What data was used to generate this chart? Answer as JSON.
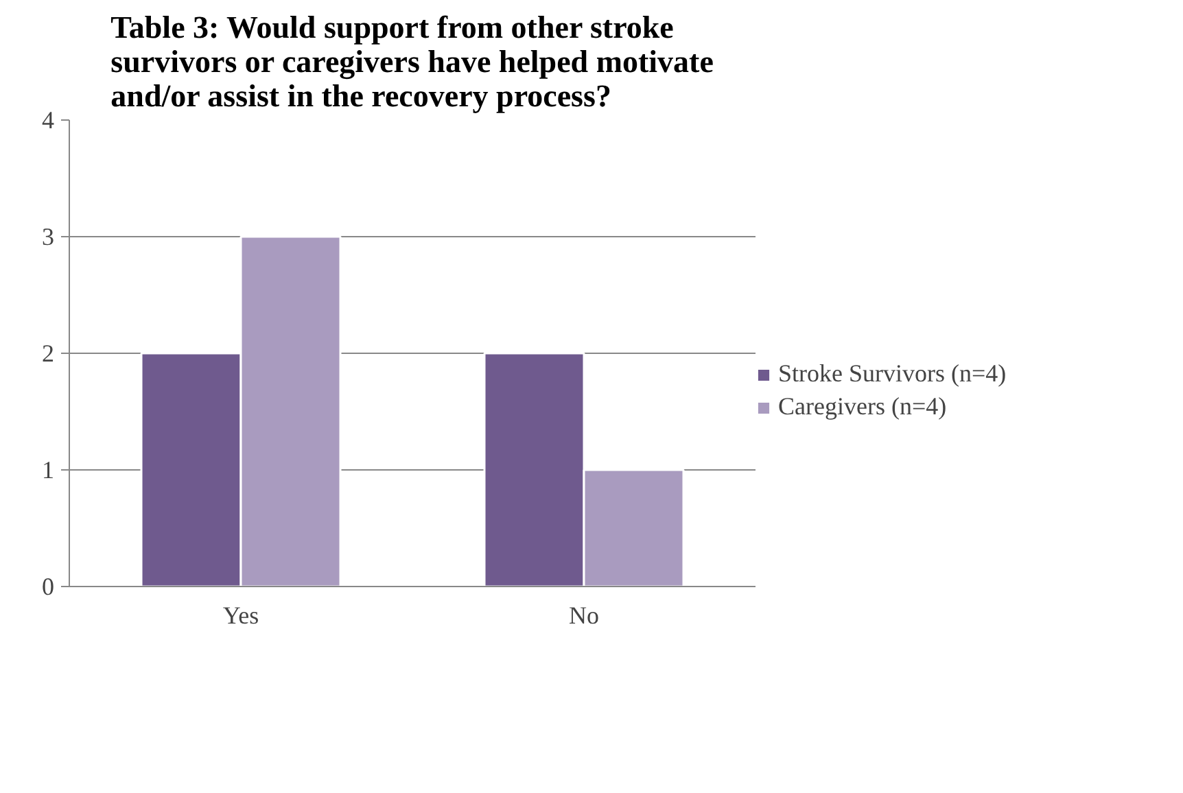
{
  "chart_data": {
    "type": "bar",
    "title": "Table 3: Would support from other stroke survivors or caregivers have helped motivate and/or assist in the recovery process?",
    "categories": [
      "Yes",
      "No"
    ],
    "series": [
      {
        "name": "Stroke Survivors (n=4)",
        "color": "#6f5a8e",
        "values": [
          2,
          2
        ]
      },
      {
        "name": "Caregivers (n=4)",
        "color": "#a99bbf",
        "values": [
          3,
          1
        ]
      }
    ],
    "ylim": [
      0,
      4
    ],
    "yticks": [
      0,
      1,
      2,
      3,
      4
    ],
    "grid": "y",
    "legend": "right"
  }
}
